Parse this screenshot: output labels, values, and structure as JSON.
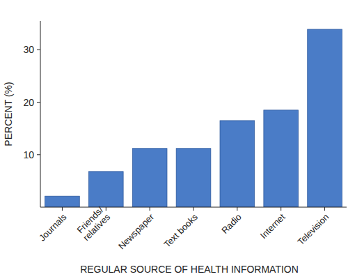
{
  "chart_data": {
    "type": "bar",
    "x_label": "REGULAR SOURCE OF HEALTH INFORMATION",
    "y_label": "PERCENT (%)",
    "categories": [
      "Journals",
      "Friends/\nrelatives",
      "Newspaper",
      "Text books",
      "Radio",
      "Internet",
      "Television"
    ],
    "values": [
      2.1,
      6.8,
      11.2,
      11.2,
      16.5,
      18.5,
      33.9
    ],
    "color": "#4a7cc7",
    "ylim": [
      0,
      35.5
    ],
    "yticks": [
      10,
      20,
      30
    ],
    "grid": false
  }
}
